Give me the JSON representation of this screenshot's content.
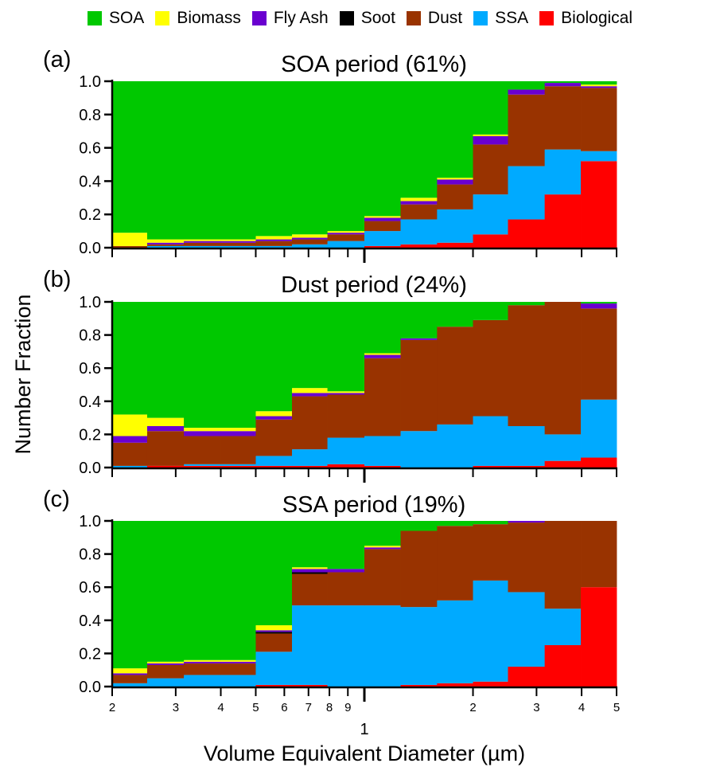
{
  "legend": [
    {
      "name": "SOA",
      "color": "#00c800"
    },
    {
      "name": "Biomass",
      "color": "#ffff00"
    },
    {
      "name": "Fly Ash",
      "color": "#6a00d0"
    },
    {
      "name": "Soot",
      "color": "#000000"
    },
    {
      "name": "Dust",
      "color": "#993300"
    },
    {
      "name": "SSA",
      "color": "#00aaff"
    },
    {
      "name": "Biological",
      "color": "#ff0000"
    }
  ],
  "ylabel": "Number Fraction",
  "xlabel": "Volume Equivalent Diameter (µm)",
  "chart_data": [
    {
      "type": "bar",
      "stacked": true,
      "panel_label": "(a)",
      "title": "SOA period (61%)",
      "x_scale": "log",
      "xlim": [
        0.2,
        5
      ],
      "ylim": [
        0,
        1
      ],
      "yticks": [
        "0.0",
        "0.2",
        "0.4",
        "0.6",
        "0.8",
        "1.0"
      ],
      "bin_edges": [
        0.2,
        0.25,
        0.316,
        0.4,
        0.5,
        0.63,
        0.79,
        1.0,
        1.26,
        1.59,
        2.0,
        2.5,
        3.16,
        3.98,
        5.0
      ],
      "series": [
        {
          "name": "Biological",
          "values": [
            0.0,
            0.0,
            0.0,
            0.0,
            0.0,
            0.0,
            0.0,
            0.01,
            0.02,
            0.03,
            0.08,
            0.17,
            0.32,
            0.52
          ]
        },
        {
          "name": "SSA",
          "values": [
            0.0,
            0.01,
            0.01,
            0.01,
            0.01,
            0.02,
            0.04,
            0.09,
            0.15,
            0.2,
            0.24,
            0.32,
            0.27,
            0.06
          ]
        },
        {
          "name": "Dust",
          "values": [
            0.01,
            0.01,
            0.02,
            0.02,
            0.03,
            0.03,
            0.04,
            0.06,
            0.09,
            0.15,
            0.3,
            0.43,
            0.38,
            0.38
          ]
        },
        {
          "name": "Soot",
          "values": [
            0.0,
            0.0,
            0.0,
            0.0,
            0.0,
            0.0,
            0.0,
            0.0,
            0.0,
            0.0,
            0.0,
            0.0,
            0.0,
            0.0
          ]
        },
        {
          "name": "Fly Ash",
          "values": [
            0.0,
            0.01,
            0.01,
            0.01,
            0.01,
            0.01,
            0.01,
            0.02,
            0.02,
            0.03,
            0.05,
            0.03,
            0.02,
            0.01
          ]
        },
        {
          "name": "Biomass",
          "values": [
            0.08,
            0.02,
            0.01,
            0.01,
            0.02,
            0.02,
            0.01,
            0.01,
            0.02,
            0.01,
            0.01,
            0.0,
            0.0,
            0.01
          ]
        },
        {
          "name": "SOA",
          "values": [
            0.91,
            0.95,
            0.95,
            0.95,
            0.93,
            0.92,
            0.9,
            0.81,
            0.7,
            0.58,
            0.32,
            0.05,
            0.01,
            0.02
          ]
        }
      ]
    },
    {
      "type": "bar",
      "stacked": true,
      "panel_label": "(b)",
      "title": "Dust period (24%)",
      "x_scale": "log",
      "xlim": [
        0.2,
        5
      ],
      "ylim": [
        0,
        1
      ],
      "yticks": [
        "0.0",
        "0.2",
        "0.4",
        "0.6",
        "0.8",
        "1.0"
      ],
      "bin_edges": [
        0.2,
        0.25,
        0.316,
        0.4,
        0.5,
        0.63,
        0.79,
        1.0,
        1.26,
        1.59,
        2.0,
        2.5,
        3.16,
        3.98,
        5.0
      ],
      "series": [
        {
          "name": "Biological",
          "values": [
            0.0,
            0.01,
            0.01,
            0.01,
            0.01,
            0.01,
            0.02,
            0.01,
            0.0,
            0.0,
            0.01,
            0.01,
            0.04,
            0.06
          ]
        },
        {
          "name": "SSA",
          "values": [
            0.01,
            0.0,
            0.01,
            0.01,
            0.06,
            0.1,
            0.16,
            0.18,
            0.22,
            0.26,
            0.3,
            0.24,
            0.16,
            0.35
          ]
        },
        {
          "name": "Dust",
          "values": [
            0.14,
            0.21,
            0.17,
            0.17,
            0.22,
            0.32,
            0.26,
            0.47,
            0.55,
            0.59,
            0.58,
            0.73,
            0.8,
            0.55
          ]
        },
        {
          "name": "Soot",
          "values": [
            0.0,
            0.0,
            0.0,
            0.0,
            0.0,
            0.0,
            0.0,
            0.0,
            0.0,
            0.0,
            0.0,
            0.0,
            0.0,
            0.0
          ]
        },
        {
          "name": "Fly Ash",
          "values": [
            0.04,
            0.03,
            0.03,
            0.03,
            0.02,
            0.02,
            0.01,
            0.02,
            0.01,
            0.0,
            0.0,
            0.0,
            0.0,
            0.03
          ]
        },
        {
          "name": "Biomass",
          "values": [
            0.13,
            0.05,
            0.02,
            0.02,
            0.03,
            0.03,
            0.01,
            0.01,
            0.0,
            0.0,
            0.0,
            0.0,
            0.0,
            0.0
          ]
        },
        {
          "name": "SOA",
          "values": [
            0.68,
            0.7,
            0.76,
            0.76,
            0.66,
            0.52,
            0.54,
            0.31,
            0.22,
            0.15,
            0.11,
            0.02,
            0.0,
            0.01
          ]
        }
      ]
    },
    {
      "type": "bar",
      "stacked": true,
      "panel_label": "(c)",
      "title": "SSA period (19%)",
      "x_scale": "log",
      "xlim": [
        0.2,
        5
      ],
      "ylim": [
        0,
        1
      ],
      "yticks": [
        "0.0",
        "0.2",
        "0.4",
        "0.6",
        "0.8",
        "1.0"
      ],
      "bin_edges": [
        0.2,
        0.25,
        0.316,
        0.4,
        0.5,
        0.63,
        0.79,
        1.0,
        1.26,
        1.59,
        2.0,
        2.5,
        3.16,
        3.98,
        5.0
      ],
      "series": [
        {
          "name": "Biological",
          "values": [
            0.0,
            0.0,
            0.0,
            0.0,
            0.01,
            0.01,
            0.0,
            0.0,
            0.01,
            0.02,
            0.03,
            0.12,
            0.25,
            0.6
          ]
        },
        {
          "name": "SSA",
          "values": [
            0.02,
            0.05,
            0.07,
            0.07,
            0.2,
            0.48,
            0.49,
            0.49,
            0.47,
            0.5,
            0.61,
            0.45,
            0.22,
            0.0
          ]
        },
        {
          "name": "Dust",
          "values": [
            0.05,
            0.08,
            0.07,
            0.07,
            0.11,
            0.19,
            0.2,
            0.34,
            0.46,
            0.45,
            0.34,
            0.42,
            0.53,
            0.4
          ]
        },
        {
          "name": "Soot",
          "values": [
            0.0,
            0.0,
            0.0,
            0.0,
            0.01,
            0.01,
            0.0,
            0.0,
            0.0,
            0.0,
            0.0,
            0.0,
            0.0,
            0.0
          ]
        },
        {
          "name": "Fly Ash",
          "values": [
            0.01,
            0.01,
            0.01,
            0.01,
            0.01,
            0.02,
            0.02,
            0.01,
            0.0,
            0.0,
            0.0,
            0.01,
            0.0,
            0.0
          ]
        },
        {
          "name": "Biomass",
          "values": [
            0.03,
            0.01,
            0.01,
            0.01,
            0.03,
            0.01,
            0.0,
            0.01,
            0.0,
            0.0,
            0.0,
            0.0,
            0.0,
            0.0
          ]
        },
        {
          "name": "SOA",
          "values": [
            0.89,
            0.85,
            0.84,
            0.84,
            0.63,
            0.28,
            0.29,
            0.15,
            0.06,
            0.03,
            0.02,
            0.0,
            0.0,
            0.0
          ]
        }
      ]
    }
  ],
  "xticks": [
    {
      "value": 0.2,
      "label": "2"
    },
    {
      "value": 0.3,
      "label": "3"
    },
    {
      "value": 0.4,
      "label": "4"
    },
    {
      "value": 0.5,
      "label": "5"
    },
    {
      "value": 0.6,
      "label": "6"
    },
    {
      "value": 0.7,
      "label": "7"
    },
    {
      "value": 0.8,
      "label": "8"
    },
    {
      "value": 0.9,
      "label": "9"
    },
    {
      "value": 1,
      "label": "1"
    },
    {
      "value": 2,
      "label": "2"
    },
    {
      "value": 3,
      "label": "3"
    },
    {
      "value": 4,
      "label": "4"
    },
    {
      "value": 5,
      "label": "5"
    }
  ]
}
